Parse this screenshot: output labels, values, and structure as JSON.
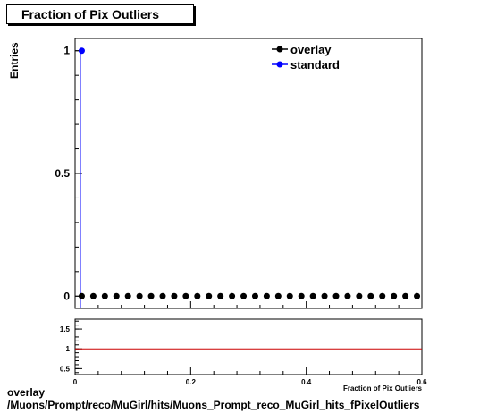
{
  "chart_data": [
    {
      "type": "scatter",
      "title": "Fraction of Pix Outliers",
      "ylabel": "Entries",
      "xlabel": "Fraction of Pix Outliers",
      "xlim": [
        0,
        0.6
      ],
      "ylim": [
        -0.05,
        1.05
      ],
      "xticks": [
        "0",
        "0.2",
        "0.4",
        "0.6"
      ],
      "yticks": [
        "0",
        "0.5",
        "1"
      ],
      "legend": {
        "placement": "top-right"
      },
      "series": [
        {
          "name": "overlay",
          "color": "#000000",
          "x": [
            0.01,
            0.03,
            0.05,
            0.07,
            0.09,
            0.11,
            0.13,
            0.15,
            0.17,
            0.19,
            0.21,
            0.23,
            0.25,
            0.27,
            0.29,
            0.31,
            0.33,
            0.35,
            0.37,
            0.39,
            0.41,
            0.43,
            0.45,
            0.47,
            0.49,
            0.51,
            0.53,
            0.55,
            0.57,
            0.59
          ],
          "y": [
            0,
            0,
            0,
            0,
            0,
            0,
            0,
            0,
            0,
            0,
            0,
            0,
            0,
            0,
            0,
            0,
            0,
            0,
            0,
            0,
            0,
            0,
            0,
            0,
            0,
            0,
            0,
            0,
            0,
            0
          ]
        },
        {
          "name": "standard",
          "color": "#0000ff",
          "x": [
            0.01
          ],
          "y": [
            1
          ]
        }
      ]
    },
    {
      "type": "line",
      "xlim": [
        0,
        0.6
      ],
      "ylim": [
        0.35,
        1.75
      ],
      "yticks": [
        "0.5",
        "1",
        "1.5"
      ],
      "xticks": [
        "0",
        "0.2",
        "0.4",
        "0.6"
      ],
      "reference_line": {
        "y": 1,
        "color": "#cc0000"
      }
    }
  ],
  "footer": {
    "line1": "overlay",
    "line2": "/Muons/Prompt/reco/MuGirl/hits/Muons_Prompt_reco_MuGirl_hits_fPixelOutliers"
  }
}
